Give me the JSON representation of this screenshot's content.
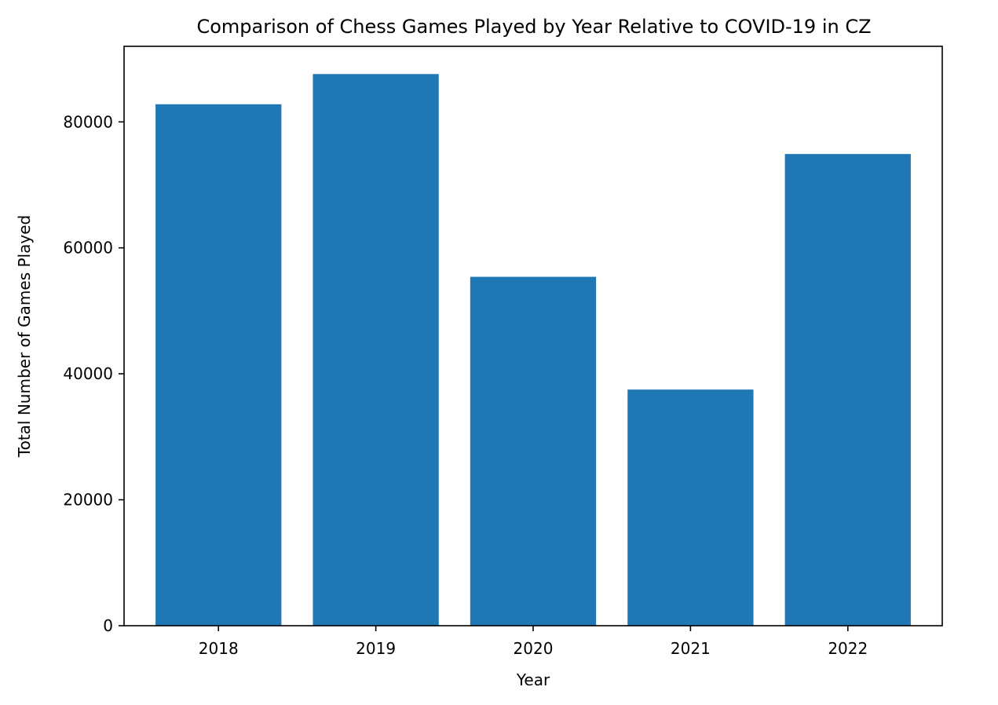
{
  "chart_data": {
    "type": "bar",
    "title": "Comparison of Chess Games Played by Year Relative to COVID-19 in CZ",
    "xlabel": "Year",
    "ylabel": "Total Number of Games Played",
    "categories": [
      "2018",
      "2019",
      "2020",
      "2021",
      "2022"
    ],
    "values": [
      82800,
      87600,
      55400,
      37500,
      74900
    ],
    "ylim": [
      0,
      92000
    ],
    "yticks": [
      0,
      20000,
      40000,
      60000,
      80000
    ],
    "ytick_labels": [
      "0",
      "20000",
      "40000",
      "60000",
      "80000"
    ],
    "bar_color": "#1f77b4",
    "grid": false,
    "legend": "none"
  }
}
